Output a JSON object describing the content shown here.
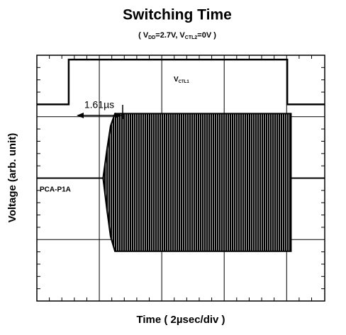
{
  "chart_data": {
    "type": "line",
    "title": "Switching Time",
    "subtitle_parts": [
      "( V",
      "DD",
      "=2.7V, V",
      "CTL2",
      "=0V )"
    ],
    "xlabel": "Time ( 2µsec/div )",
    "ylabel": "Voltage (arb. unit)",
    "annotation": "1.61µs",
    "xlim": [
      0,
      4.61
    ],
    "ylim": [
      0,
      4
    ],
    "xticks": [
      1,
      2,
      3,
      4
    ],
    "yticks": [
      1,
      2,
      3
    ],
    "xminorticks": [
      0.2,
      0.4,
      0.6,
      0.8,
      1.2,
      1.4,
      1.6,
      1.8,
      2.2,
      2.4,
      2.6,
      2.8,
      3.2,
      3.4,
      3.6,
      3.8,
      4.2,
      4.4
    ],
    "yminorticks": [
      0.2,
      0.4,
      0.6,
      0.8,
      1.2,
      1.4,
      1.6,
      1.8,
      2.2,
      2.4,
      2.6,
      2.8,
      3.2,
      3.4,
      3.6,
      3.8
    ],
    "grid": true,
    "series": [
      {
        "name_parts": [
          "V",
          "CTL1"
        ],
        "color": "#000000",
        "x": [
          0,
          0.51,
          0.51,
          4.01,
          4.01,
          4.61
        ],
        "values": [
          3.2,
          3.2,
          3.93,
          3.93,
          3.2,
          3.2
        ]
      },
      {
        "name": "PCA-P1A",
        "color": "#000000",
        "x": [
          0,
          1.06,
          1.12,
          1.18,
          1.25,
          4.07,
          4.07,
          4.61
        ],
        "upper": [
          2.0,
          2.0,
          2.45,
          2.85,
          3.05,
          3.05,
          2.0,
          2.0
        ],
        "lower": [
          2.0,
          2.0,
          1.5,
          1.05,
          0.81,
          0.81,
          2.0,
          2.0
        ]
      }
    ]
  }
}
